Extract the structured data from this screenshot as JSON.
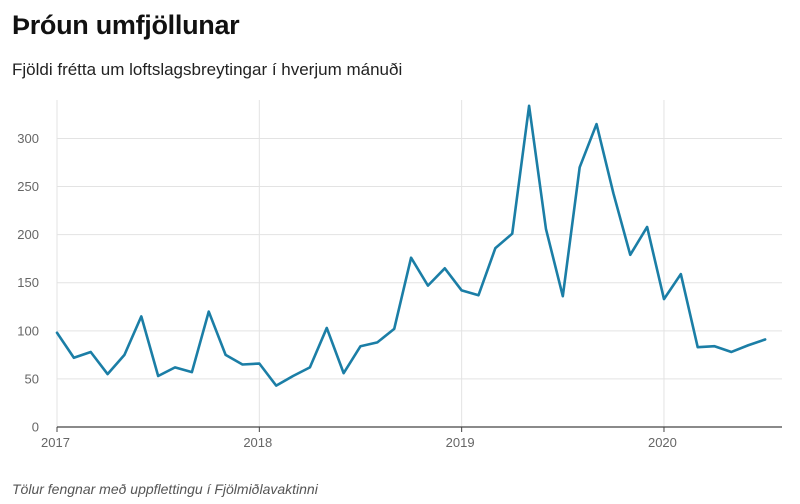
{
  "title": "Þróun umfjöllunar",
  "subtitle": "Fjöldi frétta um loftslagsbreytingar í hverjum mánuði",
  "footnote": "Tölur fengnar með uppflettingu í Fjölmiðlavaktinni",
  "colors": {
    "line": "#1b7ea6",
    "grid": "#e3e3e3",
    "axis": "#444444"
  },
  "chart_data": {
    "type": "line",
    "title": "Þróun umfjöllunar",
    "subtitle": "Fjöldi frétta um loftslagsbreytingar í hverjum mánuði",
    "xlabel": "",
    "ylabel": "",
    "ylim": [
      0,
      340
    ],
    "xlim": [
      "2017-01",
      "2020-08"
    ],
    "yticks": [
      0,
      50,
      100,
      150,
      200,
      250,
      300
    ],
    "xticks": [
      {
        "date": "2017-01",
        "label": "2017"
      },
      {
        "date": "2018-01",
        "label": "2018"
      },
      {
        "date": "2019-01",
        "label": "2019"
      },
      {
        "date": "2020-01",
        "label": "2020"
      }
    ],
    "grid": true,
    "legend": "none",
    "series": [
      {
        "x": [
          "2017-01",
          "2017-02",
          "2017-03",
          "2017-04",
          "2017-05",
          "2017-06",
          "2017-07",
          "2017-08",
          "2017-09",
          "2017-10",
          "2017-11",
          "2017-12",
          "2018-01",
          "2018-02",
          "2018-03",
          "2018-04",
          "2018-05",
          "2018-06",
          "2018-07",
          "2018-08",
          "2018-09",
          "2018-10",
          "2018-11",
          "2018-12",
          "2019-01",
          "2019-02",
          "2019-03",
          "2019-04",
          "2019-05",
          "2019-06",
          "2019-07",
          "2019-08",
          "2019-09",
          "2019-10",
          "2019-11",
          "2019-12",
          "2020-01",
          "2020-02",
          "2020-03",
          "2020-04",
          "2020-05",
          "2020-06",
          "2020-07"
        ],
        "values": [
          98,
          72,
          78,
          55,
          75,
          115,
          53,
          62,
          57,
          120,
          75,
          65,
          66,
          43,
          53,
          62,
          103,
          56,
          84,
          88,
          102,
          176,
          147,
          165,
          142,
          137,
          186,
          201,
          334,
          206,
          136,
          270,
          315,
          243,
          179,
          208,
          133,
          159,
          83,
          84,
          78,
          85,
          91
        ]
      }
    ]
  }
}
